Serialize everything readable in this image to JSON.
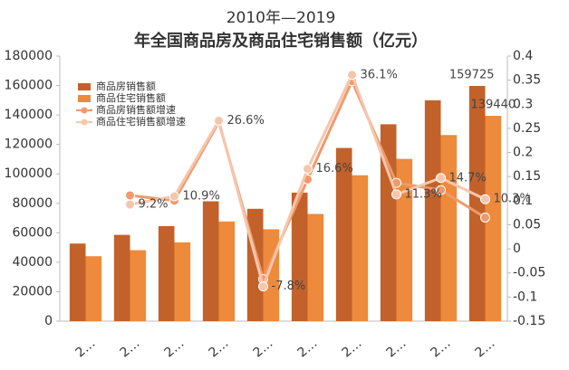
{
  "chart_data": {
    "type": "bar-line",
    "title": "2010年—2019",
    "subtitle": "年全国商品房及商品住宅销售额（亿元）",
    "categories": [
      "2…",
      "2…",
      "2…",
      "2…",
      "2…",
      "2…",
      "2…",
      "2…",
      "2…",
      "2…"
    ],
    "series": [
      {
        "name": "商品房销售额",
        "type": "bar",
        "color": "#c2622a",
        "values": [
          52700,
          58600,
          64500,
          81400,
          76300,
          87300,
          117600,
          133700,
          150000,
          159725
        ]
      },
      {
        "name": "商品住宅销售额",
        "type": "bar",
        "color": "#ee8a3c",
        "values": [
          44100,
          48200,
          53500,
          67700,
          62400,
          72800,
          99100,
          110200,
          126400,
          139440
        ]
      },
      {
        "name": "商品房销售额增速",
        "type": "line",
        "axis": "y2",
        "color": "#ef9a6a",
        "values": [
          null,
          0.111,
          0.1,
          0.263,
          -0.063,
          0.144,
          0.348,
          0.137,
          0.122,
          0.065
        ]
      },
      {
        "name": "商品住宅销售额增速",
        "type": "line",
        "axis": "y2",
        "color": "#f5c6ad",
        "values": [
          null,
          0.092,
          0.109,
          0.266,
          -0.078,
          0.166,
          0.361,
          0.113,
          0.147,
          0.103
        ],
        "value_labels": [
          null,
          "9.2%",
          "10.9%",
          "26.6%",
          "-7.8%",
          "16.6%",
          "36.1%",
          "11.3%",
          "14.7%",
          "10.3%"
        ]
      }
    ],
    "ylim": [
      0,
      180000
    ],
    "yticks": [
      0,
      20000,
      40000,
      60000,
      80000,
      100000,
      120000,
      140000,
      160000,
      180000
    ],
    "y2lim": [
      -0.15,
      0.4
    ],
    "y2ticks": [
      -0.15,
      -0.1,
      -0.05,
      0,
      0.05,
      0.1,
      0.15,
      0.2,
      0.25,
      0.3,
      0.35,
      0.4
    ],
    "legend": "upper left"
  }
}
